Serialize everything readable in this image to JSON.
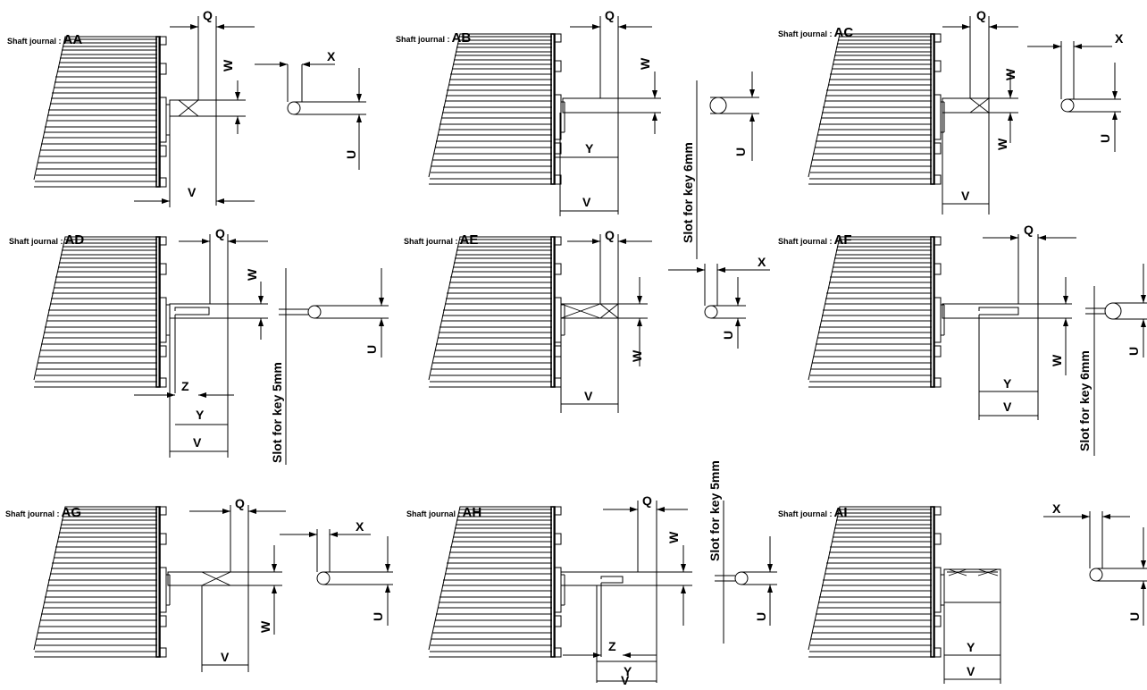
{
  "title_prefix": "Shaft journal :",
  "journals": [
    {
      "code": "AA",
      "dims": [
        "Q",
        "W",
        "V",
        "X",
        "U"
      ]
    },
    {
      "code": "AB",
      "dims": [
        "Q",
        "W",
        "Y",
        "V",
        "U"
      ],
      "slot_note": "Slot for key 6mm"
    },
    {
      "code": "AC",
      "dims": [
        "Q",
        "W",
        "V",
        "X",
        "U"
      ]
    },
    {
      "code": "AD",
      "dims": [
        "Q",
        "W",
        "Z",
        "Y",
        "V",
        "U"
      ],
      "slot_note": "Slot for key 5mm"
    },
    {
      "code": "AE",
      "dims": [
        "Q",
        "W",
        "V",
        "X",
        "U"
      ]
    },
    {
      "code": "AF",
      "dims": [
        "Q",
        "W",
        "Y",
        "V",
        "U"
      ],
      "slot_note": "Slot for key 6mm"
    },
    {
      "code": "AG",
      "dims": [
        "Q",
        "W",
        "V",
        "X",
        "U"
      ]
    },
    {
      "code": "AH",
      "dims": [
        "Q",
        "W",
        "Z",
        "Y",
        "V",
        "U"
      ],
      "slot_note": "Slot for key 5mm"
    },
    {
      "code": "AI",
      "dims": [
        "Y",
        "V",
        "X",
        "U"
      ]
    }
  ]
}
